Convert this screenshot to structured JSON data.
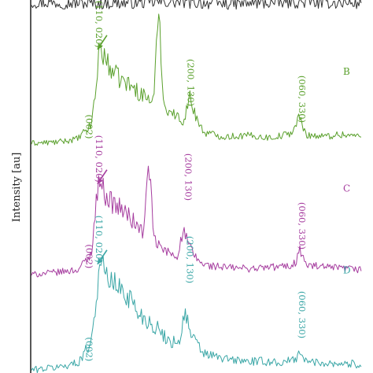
{
  "chart_data": {
    "type": "line",
    "title": "",
    "xlabel": "",
    "ylabel": "Intensity [au]",
    "grid": false,
    "xlim": [
      0,
      100
    ],
    "series": [
      {
        "name": "",
        "color": "#333333",
        "label": "",
        "baseline_level": 0.01,
        "points": [
          [
            0,
            0.01
          ],
          [
            20,
            0.005
          ],
          [
            40,
            0.012
          ],
          [
            60,
            0.004
          ],
          [
            80,
            0.011
          ],
          [
            100,
            0.006
          ]
        ],
        "annotations": []
      },
      {
        "name": "B",
        "color": "#5aa02c",
        "label": "B",
        "baseline_level": 0.62,
        "points": [
          [
            0,
            0.0
          ],
          [
            8,
            0.01
          ],
          [
            14,
            0.04
          ],
          [
            18,
            0.16
          ],
          [
            19.5,
            0.48
          ],
          [
            20.5,
            0.88
          ],
          [
            21.5,
            0.82
          ],
          [
            23,
            0.72
          ],
          [
            26,
            0.6
          ],
          [
            30,
            0.52
          ],
          [
            33,
            0.45
          ],
          [
            37,
            0.38
          ],
          [
            38.5,
            1.25
          ],
          [
            40,
            0.34
          ],
          [
            44,
            0.24
          ],
          [
            46,
            0.2
          ],
          [
            47,
            0.32
          ],
          [
            48,
            0.42
          ],
          [
            49,
            0.3
          ],
          [
            52,
            0.1
          ],
          [
            58,
            0.06
          ],
          [
            66,
            0.07
          ],
          [
            72,
            0.05
          ],
          [
            76,
            0.07
          ],
          [
            79,
            0.1
          ],
          [
            81,
            0.24
          ],
          [
            83,
            0.08
          ],
          [
            88,
            0.06
          ],
          [
            94,
            0.08
          ],
          [
            100,
            0.06
          ]
        ],
        "annotations": [
          {
            "text": "(110, 020)",
            "x": 19.5,
            "y": 1.08,
            "rotated": true,
            "arrow": true
          },
          {
            "text": "(200, 130)",
            "x": 47.3,
            "y": 0.55,
            "rotated": true,
            "arrow": false
          },
          {
            "text": "(060, 330)",
            "x": 81,
            "y": 0.4,
            "rotated": true,
            "arrow": false
          },
          {
            "text": "(002)",
            "x": 16.5,
            "y": 0.15,
            "rotated": true,
            "arrow": false
          }
        ]
      },
      {
        "name": "C",
        "color": "#a63d9f",
        "label": "C",
        "baseline_level": 0.68,
        "points": [
          [
            0,
            0.0
          ],
          [
            8,
            0.02
          ],
          [
            14,
            0.04
          ],
          [
            18,
            0.16
          ],
          [
            19.5,
            0.56
          ],
          [
            20.5,
            0.82
          ],
          [
            21.5,
            0.7
          ],
          [
            24,
            0.6
          ],
          [
            28,
            0.52
          ],
          [
            30,
            0.46
          ],
          [
            32,
            0.4
          ],
          [
            34,
            0.34
          ],
          [
            35.5,
            0.96
          ],
          [
            37,
            0.28
          ],
          [
            40,
            0.2
          ],
          [
            44,
            0.15
          ],
          [
            46,
            0.36
          ],
          [
            47,
            0.28
          ],
          [
            49,
            0.16
          ],
          [
            52,
            0.08
          ],
          [
            58,
            0.06
          ],
          [
            66,
            0.05
          ],
          [
            72,
            0.06
          ],
          [
            78,
            0.07
          ],
          [
            80,
            0.1
          ],
          [
            81,
            0.22
          ],
          [
            83,
            0.08
          ],
          [
            88,
            0.06
          ],
          [
            94,
            0.05
          ],
          [
            100,
            0.04
          ]
        ],
        "annotations": [
          {
            "text": "(110, 020)",
            "x": 19.5,
            "y": 0.95,
            "rotated": true,
            "arrow": true
          },
          {
            "text": "(200, 130)",
            "x": 46.5,
            "y": 0.8,
            "rotated": true,
            "arrow": false
          },
          {
            "text": "(060, 330)",
            "x": 81,
            "y": 0.4,
            "rotated": true,
            "arrow": false
          },
          {
            "text": "(002)",
            "x": 16.5,
            "y": 0.15,
            "rotated": true,
            "arrow": false
          }
        ]
      },
      {
        "name": "D",
        "color": "#3aa6a6",
        "label": "D",
        "baseline_level": 0.7,
        "points": [
          [
            0,
            0.0
          ],
          [
            8,
            0.02
          ],
          [
            14,
            0.05
          ],
          [
            18,
            0.2
          ],
          [
            20,
            0.6
          ],
          [
            21,
            0.82
          ],
          [
            22,
            0.7
          ],
          [
            26,
            0.6
          ],
          [
            30,
            0.52
          ],
          [
            32,
            0.42
          ],
          [
            35,
            0.36
          ],
          [
            38,
            0.3
          ],
          [
            42,
            0.2
          ],
          [
            45,
            0.22
          ],
          [
            46.5,
            0.44
          ],
          [
            48,
            0.26
          ],
          [
            52,
            0.12
          ],
          [
            58,
            0.08
          ],
          [
            66,
            0.06
          ],
          [
            72,
            0.06
          ],
          [
            76,
            0.05
          ],
          [
            80,
            0.08
          ],
          [
            81,
            0.14
          ],
          [
            83,
            0.06
          ],
          [
            90,
            0.05
          ],
          [
            100,
            0.04
          ]
        ],
        "annotations": [
          {
            "text": "(110, 020)",
            "x": 19.5,
            "y": 0.95,
            "rotated": true,
            "arrow": true
          },
          {
            "text": "(200, 130)",
            "x": 47,
            "y": 0.8,
            "rotated": true,
            "arrow": false
          },
          {
            "text": "(060, 330)",
            "x": 81,
            "y": 0.4,
            "rotated": true,
            "arrow": false
          },
          {
            "text": "(002)",
            "x": 16.5,
            "y": 0.15,
            "rotated": true,
            "arrow": false
          }
        ]
      }
    ]
  }
}
